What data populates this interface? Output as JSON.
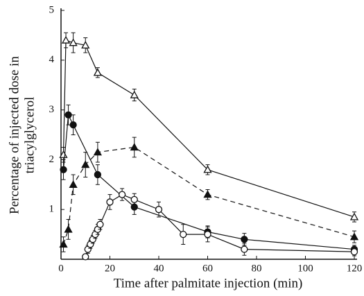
{
  "chart_data": {
    "type": "scatter",
    "x_label": "Time after palmitate injection (min)",
    "y_label": [
      "Percentage of injected dose in",
      "triacylglycerol"
    ],
    "xlim": [
      0,
      120
    ],
    "ylim": [
      0,
      5
    ],
    "xticks": [
      0,
      20,
      40,
      60,
      80,
      100,
      120
    ],
    "yticks": [
      1,
      2,
      3,
      4,
      5
    ],
    "color": "#111111",
    "series": [
      {
        "marker": "triangle-open",
        "line": "solid",
        "x": [
          1,
          2,
          5,
          10,
          15,
          30,
          60,
          120
        ],
        "values": [
          2.1,
          4.4,
          4.35,
          4.3,
          3.75,
          3.3,
          1.8,
          0.85
        ],
        "errors": [
          0.15,
          0.15,
          0.2,
          0.15,
          0.1,
          0.12,
          0.1,
          0.1
        ]
      },
      {
        "marker": "triangle-filled",
        "line": "dashed",
        "x": [
          1,
          3,
          5,
          10,
          15,
          30,
          60,
          120
        ],
        "values": [
          0.3,
          0.6,
          1.5,
          1.9,
          2.15,
          2.25,
          1.3,
          0.45
        ],
        "errors": [
          0.15,
          0.2,
          0.2,
          0.25,
          0.2,
          0.2,
          0.1,
          0.12
        ]
      },
      {
        "marker": "circle-filled",
        "line": "solid",
        "x": [
          1,
          3,
          5,
          15,
          30,
          60,
          75,
          120
        ],
        "values": [
          1.8,
          2.9,
          2.7,
          1.7,
          1.05,
          0.55,
          0.4,
          0.2
        ],
        "errors": [
          0.2,
          0.2,
          0.2,
          0.2,
          0.15,
          0.12,
          0.12,
          0.08
        ]
      },
      {
        "marker": "circle-open",
        "line": "solid",
        "x": [
          10,
          11,
          12,
          13,
          14,
          15,
          16,
          20,
          25,
          30,
          40,
          50,
          60,
          75,
          120
        ],
        "values": [
          0.05,
          0.2,
          0.3,
          0.4,
          0.5,
          0.6,
          0.7,
          1.15,
          1.3,
          1.2,
          1.0,
          0.5,
          0.5,
          0.2,
          0.15
        ],
        "errors": [
          0.05,
          0.08,
          0.08,
          0.08,
          0.08,
          0.1,
          0.1,
          0.15,
          0.12,
          0.12,
          0.15,
          0.2,
          0.15,
          0.12,
          0.08
        ]
      }
    ]
  }
}
